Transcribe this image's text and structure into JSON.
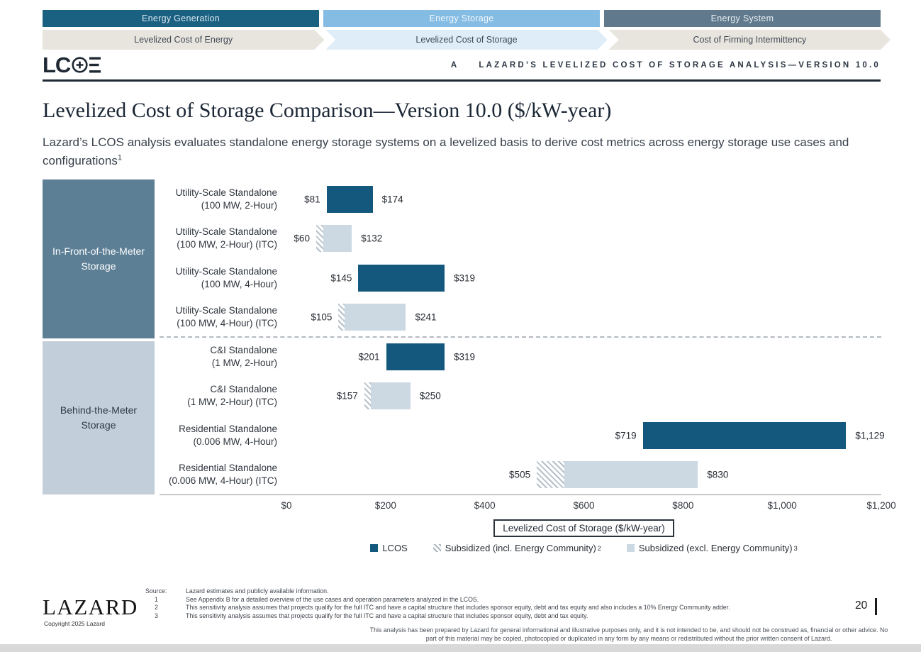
{
  "nav": {
    "tabs": [
      {
        "label": "Energy Generation",
        "color": "#1A6080",
        "text_color": "#D9E7F0",
        "active": false
      },
      {
        "label": "Energy Storage",
        "color": "#85BCE4",
        "text_color": "#F2F8FC",
        "active": true
      },
      {
        "label": "Energy System",
        "color": "#60798C",
        "text_color": "#E7EDF1",
        "active": false
      }
    ],
    "arrows": [
      {
        "label": "Levelized Cost of Energy",
        "color": "#E8E4DE",
        "active": false
      },
      {
        "label": "Levelized Cost of Storage",
        "color": "#DEEDF8",
        "active": true
      },
      {
        "label": "Cost of Firming Intermittency",
        "color": "#E8E4DE",
        "active": false
      }
    ]
  },
  "header": {
    "logo_text": "LC",
    "logo_icons": [
      "circle-plus-icon",
      "triple-bar-e-icon"
    ],
    "section_letter": "A",
    "title": "LAZARD’S LEVELIZED COST OF STORAGE ANALYSIS—VERSION 10.0"
  },
  "page": {
    "title": "Levelized Cost of Storage Comparison—Version 10.0 ($/kW-year)",
    "subtitle": "Lazard’s LCOS analysis evaluates standalone energy storage systems on a levelized basis to derive cost metrics across energy storage use cases and configurations",
    "subtitle_superscript": "1"
  },
  "chart_data": {
    "type": "bar",
    "orientation": "horizontal-range",
    "xlabel": "Levelized Cost of Storage ($/kW-year)",
    "xlim": [
      0,
      1200
    ],
    "xticks": [
      "$0",
      "$200",
      "$400",
      "$600",
      "$800",
      "$1,000",
      "$1,200"
    ],
    "xtick_values": [
      0,
      200,
      400,
      600,
      800,
      1000,
      1200
    ],
    "grid": false,
    "legend_position": "bottom",
    "groups": [
      {
        "label": "In-Front-of-the-Meter Storage",
        "color": "#5D7F96",
        "text_color": "#FDFDFD",
        "row_indexes": [
          0,
          1,
          2,
          3
        ]
      },
      {
        "label": "Behind-the-Meter Storage",
        "color": "#C2CFDA",
        "text_color": "#2E3A46",
        "row_indexes": [
          4,
          5,
          6,
          7
        ]
      }
    ],
    "rows": [
      {
        "use_case": "Utility-Scale Standalone",
        "config": "(100 MW, 2-Hour)",
        "series": "LCOS",
        "low": 81,
        "high": 174,
        "low_label": "$81",
        "high_label": "$174"
      },
      {
        "use_case": "Utility-Scale Standalone",
        "config": "(100 MW, 2-Hour) (ITC)",
        "series": "Subsidized",
        "low": 60,
        "high": 132,
        "low_label": "$60",
        "high_label": "$132",
        "hatch_end": 74
      },
      {
        "use_case": "Utility-Scale Standalone",
        "config": "(100 MW, 4-Hour)",
        "series": "LCOS",
        "low": 145,
        "high": 319,
        "low_label": "$145",
        "high_label": "$319"
      },
      {
        "use_case": "Utility-Scale Standalone",
        "config": "(100 MW, 4-Hour) (ITC)",
        "series": "Subsidized",
        "low": 105,
        "high": 241,
        "low_label": "$105",
        "high_label": "$241",
        "hatch_end": 117
      },
      {
        "use_case": "C&I Standalone",
        "config": "(1 MW, 2-Hour)",
        "series": "LCOS",
        "low": 201,
        "high": 319,
        "low_label": "$201",
        "high_label": "$319"
      },
      {
        "use_case": "C&I Standalone",
        "config": "(1 MW, 2-Hour) (ITC)",
        "series": "Subsidized",
        "low": 157,
        "high": 250,
        "low_label": "$157",
        "high_label": "$250",
        "hatch_end": 170
      },
      {
        "use_case": "Residential Standalone",
        "config": "(0.006 MW, 4-Hour)",
        "series": "LCOS",
        "low": 719,
        "high": 1129,
        "low_label": "$719",
        "high_label": "$1,129"
      },
      {
        "use_case": "Residential Standalone",
        "config": "(0.006 MW, 4-Hour) (ITC)",
        "series": "Subsidized",
        "low": 505,
        "high": 830,
        "low_label": "$505",
        "high_label": "$830",
        "hatch_end": 561
      }
    ],
    "colors": {
      "lcos_bar": "#14597D",
      "subsidized_bar": "#CDD9E2",
      "hatch_stripe": "#B7C0C9"
    },
    "legend": [
      {
        "label": "LCOS",
        "superscript": "",
        "swatch": "solid",
        "color": "#14597D"
      },
      {
        "label": "Subsidized (incl. Energy Community)",
        "superscript": "2",
        "swatch": "hatch",
        "color": "#AEB7BF"
      },
      {
        "label": "Subsidized (excl. Energy Community)",
        "superscript": "3",
        "swatch": "solid",
        "color": "#CDD9E2"
      }
    ]
  },
  "footer": {
    "lazard_logo": "LAZARD",
    "copyright": "Copyright 2025 Lazard",
    "source_label": "Source:",
    "source_text": "Lazard estimates and publicly available information.",
    "footnotes": [
      {
        "num": "1",
        "text": "See Appendix B for a detailed overview of the use cases and operation parameters analyzed in the LCOS."
      },
      {
        "num": "2",
        "text": "This sensitivity analysis assumes that projects qualify for the full ITC and have a capital structure that includes sponsor equity, debt and tax equity and also includes a 10% Energy Community adder."
      },
      {
        "num": "3",
        "text": "This sensitivity analysis assumes that projects qualify for the full ITC and have a capital structure that includes sponsor equity, debt and tax equity."
      }
    ],
    "page_number": "20",
    "disclaimer": "This analysis has been prepared by Lazard for general informational and illustrative purposes only, and it is not intended to be, and should not be construed as, financial or other advice. No part of this material may be copied, photocopied or duplicated in any form by any means or redistributed without the prior written consent of Lazard."
  }
}
